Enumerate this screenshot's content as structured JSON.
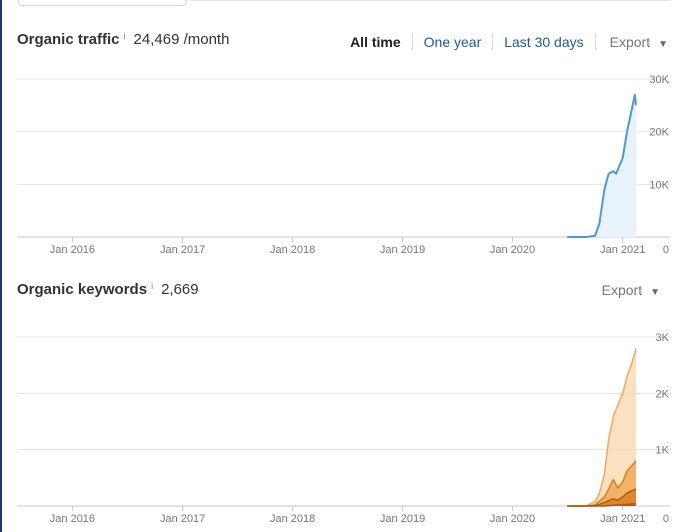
{
  "traffic": {
    "title": "Organic traffic",
    "info": "i",
    "metric": "24,469 /month",
    "range_tabs": [
      {
        "label": "All time",
        "active": true
      },
      {
        "label": "One year",
        "active": false
      },
      {
        "label": "Last 30 days",
        "active": false
      }
    ],
    "export_label": "Export",
    "caret": "▼"
  },
  "keywords": {
    "title": "Organic keywords",
    "info": "i",
    "metric": "2,669",
    "export_label": "Export",
    "caret": "▼"
  },
  "colors": {
    "traffic_line": "#4a9bd3",
    "traffic_fill": "#e8f2fb",
    "kw_light": "#f7d4a8",
    "kw_mid": "#f0a95a",
    "kw_dark": "#dc7d21",
    "kw_darker": "#b35a10"
  },
  "chart_data": [
    {
      "type": "area",
      "name": "organic-traffic",
      "x_ticks": [
        "Jan 2016",
        "Jan 2017",
        "Jan 2018",
        "Jan 2019",
        "Jan 2020",
        "Jan 2021"
      ],
      "y_ticks": [
        "30K",
        "20K",
        "10K",
        "0"
      ],
      "ylim": [
        0,
        30000
      ],
      "grid": true,
      "series": [
        {
          "points": [
            {
              "x": "2020-07",
              "y": 0
            },
            {
              "x": "2020-09",
              "y": 0
            },
            {
              "x": "2020-10",
              "y": 200
            },
            {
              "x": "2020-10-15",
              "y": 2500
            },
            {
              "x": "2020-11",
              "y": 9000
            },
            {
              "x": "2020-11-15",
              "y": 12000
            },
            {
              "x": "2020-12",
              "y": 12500
            },
            {
              "x": "2020-12-10",
              "y": 12000
            },
            {
              "x": "2021-01",
              "y": 15000
            },
            {
              "x": "2021-01-15",
              "y": 20000
            },
            {
              "x": "2021-02",
              "y": 24500
            },
            {
              "x": "2021-02-10",
              "y": 27000
            },
            {
              "x": "2021-02-14",
              "y": 25000
            }
          ]
        }
      ]
    },
    {
      "type": "area",
      "name": "organic-keywords",
      "x_ticks": [
        "Jan 2016",
        "Jan 2017",
        "Jan 2018",
        "Jan 2019",
        "Jan 2020",
        "Jan 2021"
      ],
      "y_ticks": [
        "3K",
        "2K",
        "1K",
        "0"
      ],
      "ylim": [
        0,
        3000
      ],
      "grid": true,
      "stacked": true,
      "series": [
        {
          "points": [
            {
              "x": "2020-07",
              "y": 0
            },
            {
              "x": "2020-09",
              "y": 0
            },
            {
              "x": "2020-10",
              "y": 80
            },
            {
              "x": "2020-10-15",
              "y": 220
            },
            {
              "x": "2020-11",
              "y": 560
            },
            {
              "x": "2020-11-15",
              "y": 1180
            },
            {
              "x": "2020-12",
              "y": 1600
            },
            {
              "x": "2021-01",
              "y": 2000
            },
            {
              "x": "2021-01-15",
              "y": 2300
            },
            {
              "x": "2021-02",
              "y": 2550
            },
            {
              "x": "2021-02-14",
              "y": 2800
            }
          ]
        },
        {
          "points": [
            {
              "x": "2020-07",
              "y": 0
            },
            {
              "x": "2020-09",
              "y": 0
            },
            {
              "x": "2020-10",
              "y": 20
            },
            {
              "x": "2020-11",
              "y": 160
            },
            {
              "x": "2020-11-15",
              "y": 300
            },
            {
              "x": "2020-12",
              "y": 470
            },
            {
              "x": "2020-12-15",
              "y": 320
            },
            {
              "x": "2021-01",
              "y": 430
            },
            {
              "x": "2021-01-15",
              "y": 620
            },
            {
              "x": "2021-02",
              "y": 720
            },
            {
              "x": "2021-02-14",
              "y": 800
            }
          ]
        },
        {
          "points": [
            {
              "x": "2020-07",
              "y": 0
            },
            {
              "x": "2020-10",
              "y": 0
            },
            {
              "x": "2020-11",
              "y": 60
            },
            {
              "x": "2020-12",
              "y": 130
            },
            {
              "x": "2020-12-15",
              "y": 100
            },
            {
              "x": "2021-01",
              "y": 160
            },
            {
              "x": "2021-01-15",
              "y": 230
            },
            {
              "x": "2021-02-14",
              "y": 300
            }
          ]
        },
        {
          "points": [
            {
              "x": "2020-07",
              "y": 0
            },
            {
              "x": "2020-11",
              "y": 0
            },
            {
              "x": "2020-12",
              "y": 15
            },
            {
              "x": "2021-01",
              "y": 25
            },
            {
              "x": "2021-02-14",
              "y": 40
            }
          ]
        }
      ]
    }
  ]
}
